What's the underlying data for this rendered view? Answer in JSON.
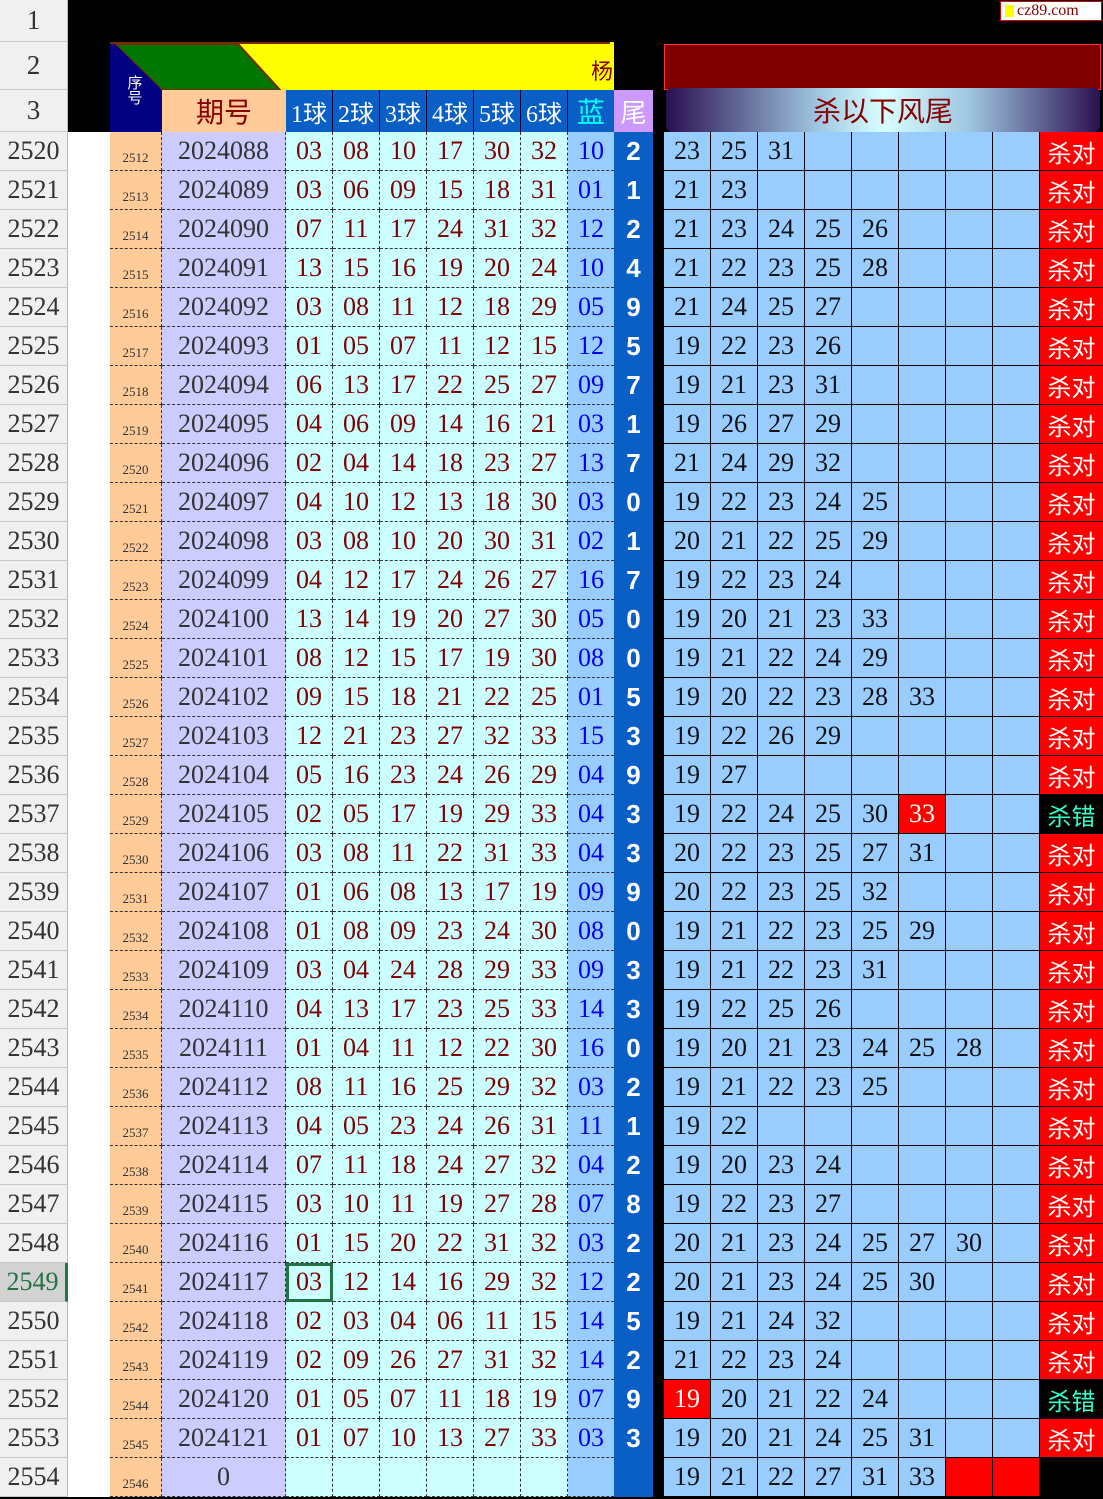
{
  "watermark": "cz89.com",
  "header": {
    "row_labels": [
      "1",
      "2",
      "3"
    ],
    "seq": "序号",
    "period": "期号",
    "balls": [
      "1球",
      "2球",
      "3球",
      "4球",
      "5球",
      "6球"
    ],
    "blue": "蓝",
    "tail": "尾",
    "kill": "杀以下风尾",
    "clipped_char": "杨"
  },
  "colors": {
    "seq_bg": "#ffcc99",
    "period_bg": "#ccccff",
    "ball_bg": "#ccffff",
    "blue_bg": "#99ccff",
    "tail_bg": "#0a5fc6",
    "kill_bg": "#99ccff",
    "ok": "#ff0000",
    "banner": "#800000",
    "yellow": "#ffff00",
    "green": "#007700"
  },
  "selected_row": "2549",
  "rows": [
    {
      "r": "2520",
      "seq": "2512",
      "period": "2024088",
      "balls": [
        "03",
        "08",
        "10",
        "17",
        "30",
        "32"
      ],
      "blue": "10",
      "tail": "2",
      "kills": [
        "23",
        "25",
        "31"
      ],
      "hit": "",
      "result": "杀对"
    },
    {
      "r": "2521",
      "seq": "2513",
      "period": "2024089",
      "balls": [
        "03",
        "06",
        "09",
        "15",
        "18",
        "31"
      ],
      "blue": "01",
      "tail": "1",
      "kills": [
        "21",
        "23"
      ],
      "hit": "",
      "result": "杀对"
    },
    {
      "r": "2522",
      "seq": "2514",
      "period": "2024090",
      "balls": [
        "07",
        "11",
        "17",
        "24",
        "31",
        "32"
      ],
      "blue": "12",
      "tail": "2",
      "kills": [
        "21",
        "23",
        "24",
        "25",
        "26"
      ],
      "hit": "",
      "result": "杀对"
    },
    {
      "r": "2523",
      "seq": "2515",
      "period": "2024091",
      "balls": [
        "13",
        "15",
        "16",
        "19",
        "20",
        "24"
      ],
      "blue": "10",
      "tail": "4",
      "kills": [
        "21",
        "22",
        "23",
        "25",
        "28"
      ],
      "hit": "",
      "result": "杀对"
    },
    {
      "r": "2524",
      "seq": "2516",
      "period": "2024092",
      "balls": [
        "03",
        "08",
        "11",
        "12",
        "18",
        "29"
      ],
      "blue": "05",
      "tail": "9",
      "kills": [
        "21",
        "24",
        "25",
        "27"
      ],
      "hit": "",
      "result": "杀对"
    },
    {
      "r": "2525",
      "seq": "2517",
      "period": "2024093",
      "balls": [
        "01",
        "05",
        "07",
        "11",
        "12",
        "15"
      ],
      "blue": "12",
      "tail": "5",
      "kills": [
        "19",
        "22",
        "23",
        "26"
      ],
      "hit": "",
      "result": "杀对"
    },
    {
      "r": "2526",
      "seq": "2518",
      "period": "2024094",
      "balls": [
        "06",
        "13",
        "17",
        "22",
        "25",
        "27"
      ],
      "blue": "09",
      "tail": "7",
      "kills": [
        "19",
        "21",
        "23",
        "31"
      ],
      "hit": "",
      "result": "杀对"
    },
    {
      "r": "2527",
      "seq": "2519",
      "period": "2024095",
      "balls": [
        "04",
        "06",
        "09",
        "14",
        "16",
        "21"
      ],
      "blue": "03",
      "tail": "1",
      "kills": [
        "19",
        "26",
        "27",
        "29"
      ],
      "hit": "",
      "result": "杀对"
    },
    {
      "r": "2528",
      "seq": "2520",
      "period": "2024096",
      "balls": [
        "02",
        "04",
        "14",
        "18",
        "23",
        "27"
      ],
      "blue": "13",
      "tail": "7",
      "kills": [
        "21",
        "24",
        "29",
        "32"
      ],
      "hit": "",
      "result": "杀对"
    },
    {
      "r": "2529",
      "seq": "2521",
      "period": "2024097",
      "balls": [
        "04",
        "10",
        "12",
        "13",
        "18",
        "30"
      ],
      "blue": "03",
      "tail": "0",
      "kills": [
        "19",
        "22",
        "23",
        "24",
        "25"
      ],
      "hit": "",
      "result": "杀对"
    },
    {
      "r": "2530",
      "seq": "2522",
      "period": "2024098",
      "balls": [
        "03",
        "08",
        "10",
        "20",
        "30",
        "31"
      ],
      "blue": "02",
      "tail": "1",
      "kills": [
        "20",
        "21",
        "22",
        "25",
        "29"
      ],
      "hit": "",
      "result": "杀对"
    },
    {
      "r": "2531",
      "seq": "2523",
      "period": "2024099",
      "balls": [
        "04",
        "12",
        "17",
        "24",
        "26",
        "27"
      ],
      "blue": "16",
      "tail": "7",
      "kills": [
        "19",
        "22",
        "23",
        "24"
      ],
      "hit": "",
      "result": "杀对"
    },
    {
      "r": "2532",
      "seq": "2524",
      "period": "2024100",
      "balls": [
        "13",
        "14",
        "19",
        "20",
        "27",
        "30"
      ],
      "blue": "05",
      "tail": "0",
      "kills": [
        "19",
        "20",
        "21",
        "23",
        "33"
      ],
      "hit": "",
      "result": "杀对"
    },
    {
      "r": "2533",
      "seq": "2525",
      "period": "2024101",
      "balls": [
        "08",
        "12",
        "15",
        "17",
        "19",
        "30"
      ],
      "blue": "08",
      "tail": "0",
      "kills": [
        "19",
        "21",
        "22",
        "24",
        "29"
      ],
      "hit": "",
      "result": "杀对"
    },
    {
      "r": "2534",
      "seq": "2526",
      "period": "2024102",
      "balls": [
        "09",
        "15",
        "18",
        "21",
        "22",
        "25"
      ],
      "blue": "01",
      "tail": "5",
      "kills": [
        "19",
        "20",
        "22",
        "23",
        "28",
        "33"
      ],
      "hit": "",
      "result": "杀对"
    },
    {
      "r": "2535",
      "seq": "2527",
      "period": "2024103",
      "balls": [
        "12",
        "21",
        "23",
        "27",
        "32",
        "33"
      ],
      "blue": "15",
      "tail": "3",
      "kills": [
        "19",
        "22",
        "26",
        "29"
      ],
      "hit": "",
      "result": "杀对"
    },
    {
      "r": "2536",
      "seq": "2528",
      "period": "2024104",
      "balls": [
        "05",
        "16",
        "23",
        "24",
        "26",
        "29"
      ],
      "blue": "04",
      "tail": "9",
      "kills": [
        "19",
        "27"
      ],
      "hit": "",
      "result": "杀对"
    },
    {
      "r": "2537",
      "seq": "2529",
      "period": "2024105",
      "balls": [
        "02",
        "05",
        "17",
        "19",
        "29",
        "33"
      ],
      "blue": "04",
      "tail": "3",
      "kills": [
        "19",
        "22",
        "24",
        "25",
        "30",
        "33"
      ],
      "hit": "33",
      "result": "杀错"
    },
    {
      "r": "2538",
      "seq": "2530",
      "period": "2024106",
      "balls": [
        "03",
        "08",
        "11",
        "22",
        "31",
        "33"
      ],
      "blue": "04",
      "tail": "3",
      "kills": [
        "20",
        "22",
        "23",
        "25",
        "27",
        "31"
      ],
      "hit": "",
      "result": "杀对"
    },
    {
      "r": "2539",
      "seq": "2531",
      "period": "2024107",
      "balls": [
        "01",
        "06",
        "08",
        "13",
        "17",
        "19"
      ],
      "blue": "09",
      "tail": "9",
      "kills": [
        "20",
        "22",
        "23",
        "25",
        "32"
      ],
      "hit": "",
      "result": "杀对"
    },
    {
      "r": "2540",
      "seq": "2532",
      "period": "2024108",
      "balls": [
        "01",
        "08",
        "09",
        "23",
        "24",
        "30"
      ],
      "blue": "08",
      "tail": "0",
      "kills": [
        "19",
        "21",
        "22",
        "23",
        "25",
        "29"
      ],
      "hit": "",
      "result": "杀对"
    },
    {
      "r": "2541",
      "seq": "2533",
      "period": "2024109",
      "balls": [
        "03",
        "04",
        "24",
        "28",
        "29",
        "33"
      ],
      "blue": "09",
      "tail": "3",
      "kills": [
        "19",
        "21",
        "22",
        "23",
        "31"
      ],
      "hit": "",
      "result": "杀对"
    },
    {
      "r": "2542",
      "seq": "2534",
      "period": "2024110",
      "balls": [
        "04",
        "13",
        "17",
        "23",
        "25",
        "33"
      ],
      "blue": "14",
      "tail": "3",
      "kills": [
        "19",
        "22",
        "25",
        "26"
      ],
      "hit": "",
      "result": "杀对"
    },
    {
      "r": "2543",
      "seq": "2535",
      "period": "2024111",
      "balls": [
        "01",
        "04",
        "11",
        "12",
        "22",
        "30"
      ],
      "blue": "16",
      "tail": "0",
      "kills": [
        "19",
        "20",
        "21",
        "23",
        "24",
        "25",
        "28"
      ],
      "hit": "",
      "result": "杀对"
    },
    {
      "r": "2544",
      "seq": "2536",
      "period": "2024112",
      "balls": [
        "08",
        "11",
        "16",
        "25",
        "29",
        "32"
      ],
      "blue": "03",
      "tail": "2",
      "kills": [
        "19",
        "21",
        "22",
        "23",
        "25"
      ],
      "hit": "",
      "result": "杀对"
    },
    {
      "r": "2545",
      "seq": "2537",
      "period": "2024113",
      "balls": [
        "04",
        "05",
        "23",
        "24",
        "26",
        "31"
      ],
      "blue": "11",
      "tail": "1",
      "kills": [
        "19",
        "22"
      ],
      "hit": "",
      "result": "杀对"
    },
    {
      "r": "2546",
      "seq": "2538",
      "period": "2024114",
      "balls": [
        "07",
        "11",
        "18",
        "24",
        "27",
        "32"
      ],
      "blue": "04",
      "tail": "2",
      "kills": [
        "19",
        "20",
        "23",
        "24"
      ],
      "hit": "",
      "result": "杀对"
    },
    {
      "r": "2547",
      "seq": "2539",
      "period": "2024115",
      "balls": [
        "03",
        "10",
        "11",
        "19",
        "27",
        "28"
      ],
      "blue": "07",
      "tail": "8",
      "kills": [
        "19",
        "22",
        "23",
        "27"
      ],
      "hit": "",
      "result": "杀对"
    },
    {
      "r": "2548",
      "seq": "2540",
      "period": "2024116",
      "balls": [
        "01",
        "15",
        "20",
        "22",
        "31",
        "32"
      ],
      "blue": "03",
      "tail": "2",
      "kills": [
        "20",
        "21",
        "23",
        "24",
        "25",
        "27",
        "30"
      ],
      "hit": "",
      "result": "杀对"
    },
    {
      "r": "2549",
      "seq": "2541",
      "period": "2024117",
      "balls": [
        "03",
        "12",
        "14",
        "16",
        "29",
        "32"
      ],
      "blue": "12",
      "tail": "2",
      "kills": [
        "20",
        "21",
        "23",
        "24",
        "25",
        "30"
      ],
      "hit": "",
      "result": "杀对"
    },
    {
      "r": "2550",
      "seq": "2542",
      "period": "2024118",
      "balls": [
        "02",
        "03",
        "04",
        "06",
        "11",
        "15"
      ],
      "blue": "14",
      "tail": "5",
      "kills": [
        "19",
        "21",
        "24",
        "32"
      ],
      "hit": "",
      "result": "杀对"
    },
    {
      "r": "2551",
      "seq": "2543",
      "period": "2024119",
      "balls": [
        "02",
        "09",
        "26",
        "27",
        "31",
        "32"
      ],
      "blue": "14",
      "tail": "2",
      "kills": [
        "21",
        "22",
        "23",
        "24"
      ],
      "hit": "",
      "result": "杀对"
    },
    {
      "r": "2552",
      "seq": "2544",
      "period": "2024120",
      "balls": [
        "01",
        "05",
        "07",
        "11",
        "18",
        "19"
      ],
      "blue": "07",
      "tail": "9",
      "kills": [
        "19",
        "20",
        "21",
        "22",
        "24"
      ],
      "hit": "19",
      "result": "杀错"
    },
    {
      "r": "2553",
      "seq": "2545",
      "period": "2024121",
      "balls": [
        "01",
        "07",
        "10",
        "13",
        "27",
        "33"
      ],
      "blue": "03",
      "tail": "3",
      "kills": [
        "19",
        "20",
        "21",
        "24",
        "25",
        "31"
      ],
      "hit": "",
      "result": "杀对"
    },
    {
      "r": "2554",
      "seq": "2546",
      "period": "0",
      "balls": [
        "",
        "",
        "",
        "",
        "",
        ""
      ],
      "blue": "",
      "tail": "",
      "kills": [
        "19",
        "21",
        "22",
        "27",
        "31",
        "33"
      ],
      "hit": "",
      "result": ""
    }
  ]
}
